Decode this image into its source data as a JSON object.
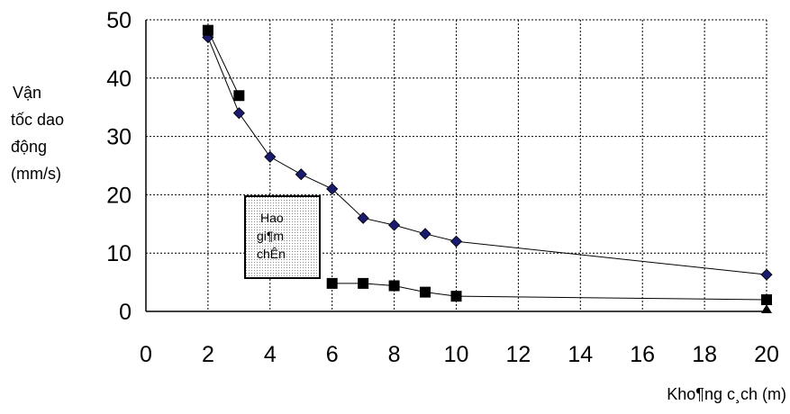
{
  "chart_data": {
    "type": "line",
    "title": "",
    "ylabel_lines": [
      "Vận",
      "tốc dao",
      "động",
      "(mm/s)"
    ],
    "xlabel": "Kho¶ng c¸ch (m)",
    "xlim": [
      0,
      20
    ],
    "ylim": [
      0,
      50
    ],
    "xticks": [
      0,
      2,
      4,
      6,
      8,
      10,
      12,
      14,
      16,
      18,
      20
    ],
    "yticks": [
      0,
      10,
      20,
      30,
      40,
      50
    ],
    "grid": true,
    "annotation_lines": [
      "Hao",
      "gi¶m",
      "chÊn"
    ],
    "series": [
      {
        "marker": "diamond",
        "color": "#1a1a6e",
        "points": [
          [
            2,
            47
          ],
          [
            3,
            34
          ],
          [
            4,
            26.5
          ],
          [
            5,
            23.5
          ],
          [
            6,
            21
          ],
          [
            7,
            16
          ],
          [
            8,
            14.8
          ],
          [
            9,
            13.3
          ],
          [
            10,
            12
          ],
          [
            20,
            6.3
          ]
        ]
      },
      {
        "marker": "square",
        "color": "#000000",
        "points": [
          [
            2,
            48.2
          ],
          [
            3,
            37
          ]
        ]
      },
      {
        "marker": "square",
        "color": "#000000",
        "points": [
          [
            6,
            4.8
          ],
          [
            7,
            4.8
          ],
          [
            8,
            4.4
          ],
          [
            9,
            3.3
          ],
          [
            10,
            2.6
          ],
          [
            20,
            2
          ]
        ]
      },
      {
        "marker": "triangle",
        "color": "#000000",
        "points": [
          [
            20,
            0.3
          ]
        ]
      }
    ]
  }
}
